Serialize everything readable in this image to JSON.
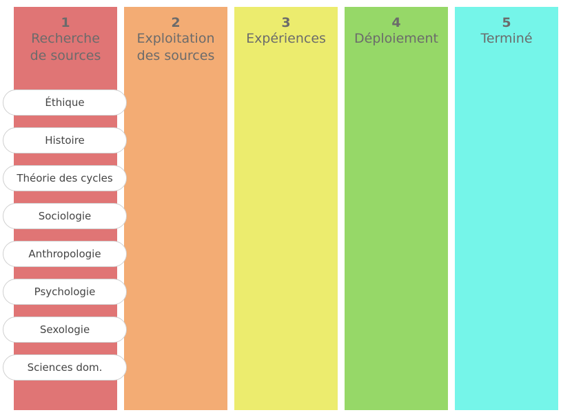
{
  "columns": [
    {
      "number": "1",
      "title": "Recherche\nde sources",
      "color": "#e07575"
    },
    {
      "number": "2",
      "title": "Exploitation\ndes sources",
      "color": "#f3ac74"
    },
    {
      "number": "3",
      "title": "Expériences",
      "color": "#ecec6e"
    },
    {
      "number": "4",
      "title": "Déploiement",
      "color": "#96d868"
    },
    {
      "number": "5",
      "title": "Terminé",
      "color": "#75f5e9"
    }
  ],
  "cards": [
    {
      "label": "Éthique"
    },
    {
      "label": "Histoire"
    },
    {
      "label": "Théorie des cycles"
    },
    {
      "label": "Sociologie"
    },
    {
      "label": "Anthropologie"
    },
    {
      "label": "Psychologie"
    },
    {
      "label": "Sexologie"
    },
    {
      "label": "Sciences dom."
    }
  ]
}
